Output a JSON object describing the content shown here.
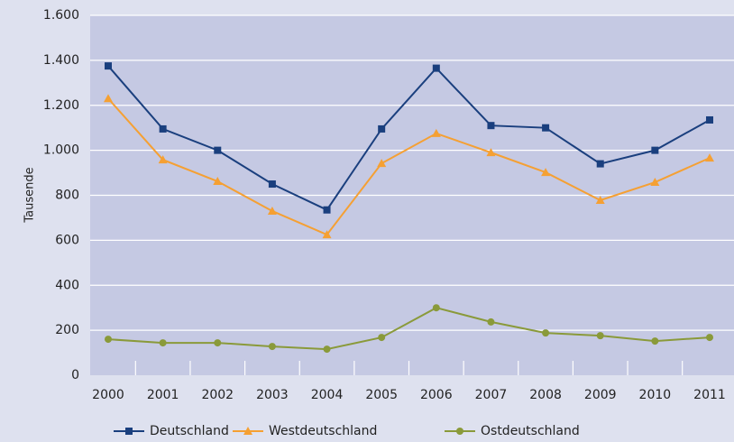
{
  "chart_data": {
    "type": "line",
    "y_label": "Tausende",
    "categories": [
      "2000",
      "2001",
      "2002",
      "2003",
      "2004",
      "2005",
      "2006",
      "2007",
      "2008",
      "2009",
      "2010",
      "2011"
    ],
    "series": [
      {
        "name": "Deutschland",
        "color": "#1a3f7e",
        "marker": "square",
        "values": [
          1375,
          1095,
          1000,
          850,
          735,
          1095,
          1365,
          1110,
          1100,
          940,
          1000,
          1135
        ]
      },
      {
        "name": "Westdeutschland",
        "color": "#f5a033",
        "marker": "triangle",
        "values": [
          1230,
          958,
          862,
          730,
          625,
          942,
          1075,
          990,
          902,
          778,
          858,
          966
        ]
      },
      {
        "name": "Ostdeutschland",
        "color": "#8a9a3a",
        "marker": "circle",
        "values": [
          160,
          144,
          144,
          128,
          116,
          168,
          300,
          237,
          188,
          176,
          152,
          168
        ]
      }
    ],
    "ylim": [
      0,
      1600
    ],
    "yticks": [
      0,
      200,
      400,
      600,
      800,
      {
        "value": 1000,
        "label": "1.000"
      },
      {
        "value": 1200,
        "label": "1.200"
      },
      {
        "value": 1400,
        "label": "1.400"
      },
      {
        "value": 1600,
        "label": "1.600"
      }
    ],
    "grid": true,
    "legend": "bottom"
  }
}
